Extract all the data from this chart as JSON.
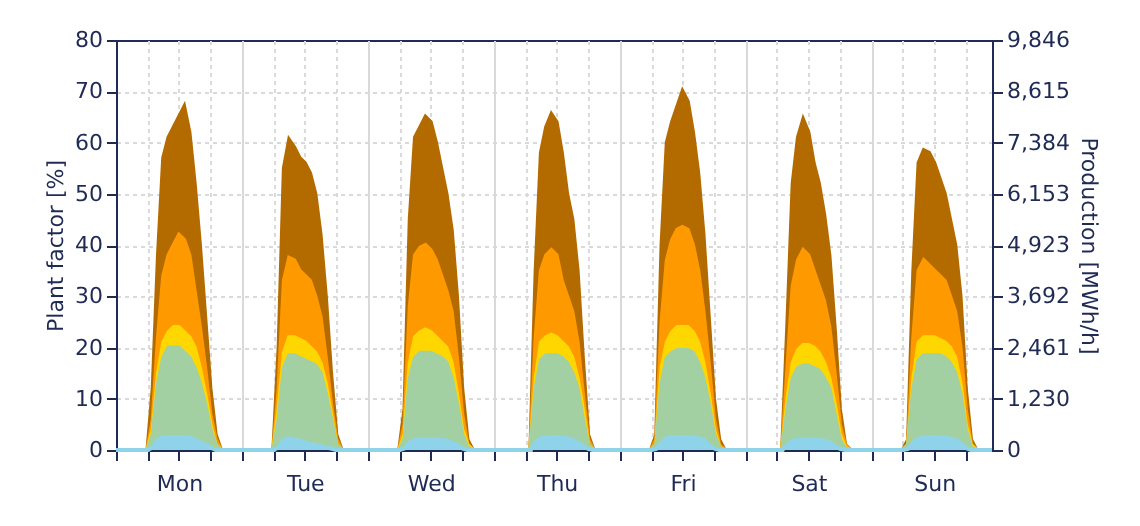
{
  "chart_data": {
    "type": "area",
    "ylabel": "Plant factor [%]",
    "y2label": "Production [MWh/h]",
    "categories": [
      null,
      null,
      null,
      null,
      null,
      null,
      null,
      null,
      null,
      null,
      null,
      null,
      "Mon",
      null,
      null,
      null,
      null,
      null,
      null,
      null,
      null,
      null,
      null,
      null,
      null,
      null,
      null,
      null,
      null,
      null,
      null,
      null,
      null,
      null,
      null,
      null,
      "Tue",
      null,
      null,
      null,
      null,
      null,
      null,
      null,
      null,
      null,
      null,
      null,
      null,
      null,
      null,
      null,
      null,
      null,
      null,
      null,
      null,
      null,
      null,
      null,
      "Wed",
      null,
      null,
      null,
      null,
      null,
      null,
      null,
      null,
      null,
      null,
      null,
      null,
      null,
      null,
      null,
      null,
      null,
      null,
      null,
      null,
      null,
      null,
      null,
      "Thu",
      null,
      null,
      null,
      null,
      null,
      null,
      null,
      null,
      null,
      null,
      null,
      null,
      null,
      null,
      null,
      null,
      null,
      null,
      null,
      null,
      null,
      null,
      null,
      "Fri",
      null,
      null,
      null,
      null,
      null,
      null,
      null,
      null,
      null,
      null,
      null,
      null,
      null,
      null,
      null,
      null,
      null,
      null,
      null,
      null,
      null,
      null,
      null,
      "Sat",
      null,
      null,
      null,
      null,
      null,
      null,
      null,
      null,
      null,
      null,
      null,
      null,
      null,
      null,
      null,
      null,
      null,
      null,
      null,
      null,
      null,
      null,
      null,
      "Sun",
      null,
      null,
      null,
      null,
      null,
      null,
      null,
      null,
      null,
      null,
      null
    ],
    "series": [
      {
        "color": "#b36b00",
        "values": [
          0,
          0,
          0,
          0,
          0,
          0,
          0,
          12,
          38,
          57,
          61,
          63,
          65,
          67,
          62,
          52,
          40,
          26,
          12,
          3,
          0,
          0,
          0,
          0,
          0,
          0,
          0,
          0,
          0,
          0,
          0,
          20,
          55,
          60.5,
          59,
          57,
          56,
          54,
          50,
          42,
          30,
          15,
          3,
          0,
          0,
          0,
          0,
          0,
          0,
          0,
          0,
          0,
          0,
          0,
          0,
          8,
          45,
          61,
          63,
          65,
          64,
          60,
          55,
          50,
          43,
          30,
          12,
          2,
          0,
          0,
          0,
          0,
          0,
          0,
          0,
          0,
          0,
          0,
          0,
          0,
          35,
          58,
          63,
          65.5,
          64,
          58,
          50,
          45,
          35,
          18,
          3,
          0,
          0,
          0,
          0,
          0,
          0,
          0,
          0,
          0,
          0,
          0,
          0,
          3,
          40,
          60,
          64,
          67,
          70,
          68,
          62,
          54,
          42,
          26,
          10,
          2,
          0,
          0,
          0,
          0,
          0,
          0,
          0,
          0,
          0,
          0,
          0,
          0,
          25,
          52,
          61,
          64.5,
          62,
          56,
          52,
          46,
          38,
          24,
          8,
          1,
          0,
          0,
          0,
          0,
          0,
          0,
          0,
          0,
          0,
          0,
          0,
          2,
          35,
          56,
          58.5,
          58,
          56,
          53,
          50,
          45,
          40,
          30,
          12,
          2,
          0,
          0,
          0,
          0
        ]
      },
      {
        "color": "#ff9900",
        "values": [
          0,
          0,
          0,
          0,
          0,
          0,
          0,
          6,
          22,
          34,
          38,
          40,
          42,
          41,
          38,
          31,
          24,
          16,
          7,
          2,
          0,
          0,
          0,
          0,
          0,
          0,
          0,
          0,
          0,
          0,
          0,
          12,
          33,
          37.5,
          37,
          35,
          34,
          33,
          30,
          26,
          18,
          9,
          2,
          0,
          0,
          0,
          0,
          0,
          0,
          0,
          0,
          0,
          0,
          0,
          0,
          5,
          28,
          38,
          39.5,
          40,
          39,
          37,
          34,
          31,
          27,
          18,
          7,
          1,
          0,
          0,
          0,
          0,
          0,
          0,
          0,
          0,
          0,
          0,
          0,
          0,
          22,
          35,
          38,
          39,
          38,
          33,
          30,
          27,
          21,
          11,
          2,
          0,
          0,
          0,
          0,
          0,
          0,
          0,
          0,
          0,
          0,
          0,
          0,
          2,
          25,
          37,
          41,
          43,
          43.5,
          43,
          40,
          35,
          27,
          17,
          6,
          1,
          0,
          0,
          0,
          0,
          0,
          0,
          0,
          0,
          0,
          0,
          0,
          0,
          16,
          32,
          37,
          39,
          38,
          35,
          32,
          29,
          24,
          15,
          5,
          1,
          0,
          0,
          0,
          0,
          0,
          0,
          0,
          0,
          0,
          0,
          0,
          1,
          22,
          35,
          37,
          36,
          35,
          34,
          33,
          30,
          27,
          20,
          8,
          1,
          0,
          0,
          0,
          0
        ]
      },
      {
        "color": "#ffd700",
        "values": [
          0,
          0,
          0,
          0,
          0,
          0,
          0,
          4,
          15,
          21,
          23,
          24,
          24,
          23,
          22,
          20,
          16,
          11,
          5,
          1,
          0,
          0,
          0,
          0,
          0,
          0,
          0,
          0,
          0,
          0,
          0,
          8,
          19,
          22,
          22,
          21.5,
          21,
          20,
          19,
          17,
          13,
          7,
          1,
          0,
          0,
          0,
          0,
          0,
          0,
          0,
          0,
          0,
          0,
          0,
          0,
          3,
          17,
          22,
          23,
          23.5,
          23,
          22,
          21,
          20,
          17,
          11,
          4,
          1,
          0,
          0,
          0,
          0,
          0,
          0,
          0,
          0,
          0,
          0,
          0,
          0,
          14,
          21,
          22,
          22.5,
          22,
          21,
          20,
          18,
          14,
          8,
          1,
          0,
          0,
          0,
          0,
          0,
          0,
          0,
          0,
          0,
          0,
          0,
          0,
          1,
          16,
          21,
          23,
          24,
          24,
          24,
          23,
          21,
          17,
          11,
          4,
          0.5,
          0,
          0,
          0,
          0,
          0,
          0,
          0,
          0,
          0,
          0,
          0,
          0,
          10,
          17,
          19.5,
          20.5,
          20.5,
          20,
          19,
          17,
          14,
          9,
          3,
          0.5,
          0,
          0,
          0,
          0,
          0,
          0,
          0,
          0,
          0,
          0,
          0,
          1,
          14,
          21,
          22,
          22,
          22,
          21.5,
          21,
          20,
          18,
          13,
          5,
          1,
          0,
          0,
          0,
          0
        ]
      },
      {
        "color": "#a2d0a2",
        "values": [
          0,
          0,
          0,
          0,
          0,
          0,
          0,
          3,
          13,
          18,
          20,
          20,
          20,
          19,
          18,
          16,
          13,
          9,
          4,
          1,
          0,
          0,
          0,
          0,
          0,
          0,
          0,
          0,
          0,
          0,
          0,
          6,
          16,
          18.5,
          18.5,
          18,
          17.5,
          17,
          16.5,
          15,
          11,
          6,
          1,
          0,
          0,
          0,
          0,
          0,
          0,
          0,
          0,
          0,
          0,
          0,
          0,
          2,
          14,
          18,
          19,
          19,
          19,
          18.5,
          18,
          17,
          14,
          9,
          3,
          0.5,
          0,
          0,
          0,
          0,
          0,
          0,
          0,
          0,
          0,
          0,
          0,
          0,
          12,
          17.5,
          18.5,
          18.5,
          18.5,
          18,
          17,
          15,
          12,
          6,
          1,
          0,
          0,
          0,
          0,
          0,
          0,
          0,
          0,
          0,
          0,
          0,
          0,
          1,
          13,
          18,
          19,
          19.5,
          19.5,
          19.5,
          19,
          17,
          14,
          9,
          3,
          0.5,
          0,
          0,
          0,
          0,
          0,
          0,
          0,
          0,
          0,
          0,
          0,
          0,
          8,
          14,
          16,
          16.5,
          16.5,
          16,
          15.5,
          14,
          12,
          7,
          2,
          0.3,
          0,
          0,
          0,
          0,
          0,
          0,
          0,
          0,
          0,
          0,
          0,
          1,
          12,
          17.5,
          18.5,
          18.5,
          18.5,
          18.5,
          18,
          17,
          15,
          11,
          4,
          0.5,
          0,
          0,
          0,
          0
        ]
      },
      {
        "color": "#8fd3ea",
        "values": [
          0,
          0,
          0,
          0,
          0,
          0,
          0,
          0.5,
          2,
          2.5,
          2.5,
          2.5,
          2.5,
          2.5,
          2.5,
          2,
          1.5,
          1,
          0.5,
          0,
          0,
          0,
          0,
          0,
          0,
          0,
          0,
          0,
          0,
          0,
          0,
          0.5,
          2,
          2.3,
          2,
          1.8,
          1.5,
          1.2,
          1,
          0.8,
          0.5,
          0.3,
          0,
          0,
          0,
          0,
          0,
          0,
          0,
          0,
          0,
          0,
          0,
          0,
          0,
          0.3,
          1.5,
          2,
          2,
          2,
          2,
          2,
          2,
          1.8,
          1.5,
          1,
          0.3,
          0,
          0,
          0,
          0,
          0,
          0,
          0,
          0,
          0,
          0,
          0,
          0,
          0,
          1.5,
          2.3,
          2.5,
          2.5,
          2.5,
          2.5,
          2.3,
          2,
          1.5,
          0.8,
          0.2,
          0,
          0,
          0,
          0,
          0,
          0,
          0,
          0,
          0,
          0,
          0,
          0,
          0.2,
          1.5,
          2.3,
          2.5,
          2.5,
          2.5,
          2.5,
          2.5,
          2.3,
          2,
          1,
          0.3,
          0,
          0,
          0,
          0,
          0,
          0,
          0,
          0,
          0,
          0,
          0,
          0,
          0,
          1,
          1.8,
          2,
          2,
          2,
          2,
          2,
          1.8,
          1.5,
          0.8,
          0.2,
          0,
          0,
          0,
          0,
          0,
          0,
          0,
          0,
          0,
          0,
          0,
          0,
          0.2,
          1.5,
          2.2,
          2.5,
          2.5,
          2.5,
          2.5,
          2.4,
          2.2,
          2,
          1.3,
          0.4,
          0,
          0,
          0,
          0,
          0
        ]
      }
    ],
    "ylim": [
      0,
      80
    ],
    "yticks": [
      0,
      10,
      20,
      30,
      40,
      50,
      60,
      70,
      80
    ],
    "y2lim": [
      0,
      9846
    ],
    "y2ticks": [
      0,
      {
        "value": 1230,
        "label": "1,230"
      },
      {
        "value": 2461,
        "label": "2,461"
      },
      {
        "value": 3692,
        "label": "3,692"
      },
      {
        "value": 4923,
        "label": "4,923"
      },
      {
        "value": 6153,
        "label": "6,153"
      },
      {
        "value": 7384,
        "label": "7,384"
      },
      {
        "value": 8615,
        "label": "8,615"
      },
      {
        "value": 9846,
        "label": "9,846"
      }
    ],
    "grid": true
  }
}
